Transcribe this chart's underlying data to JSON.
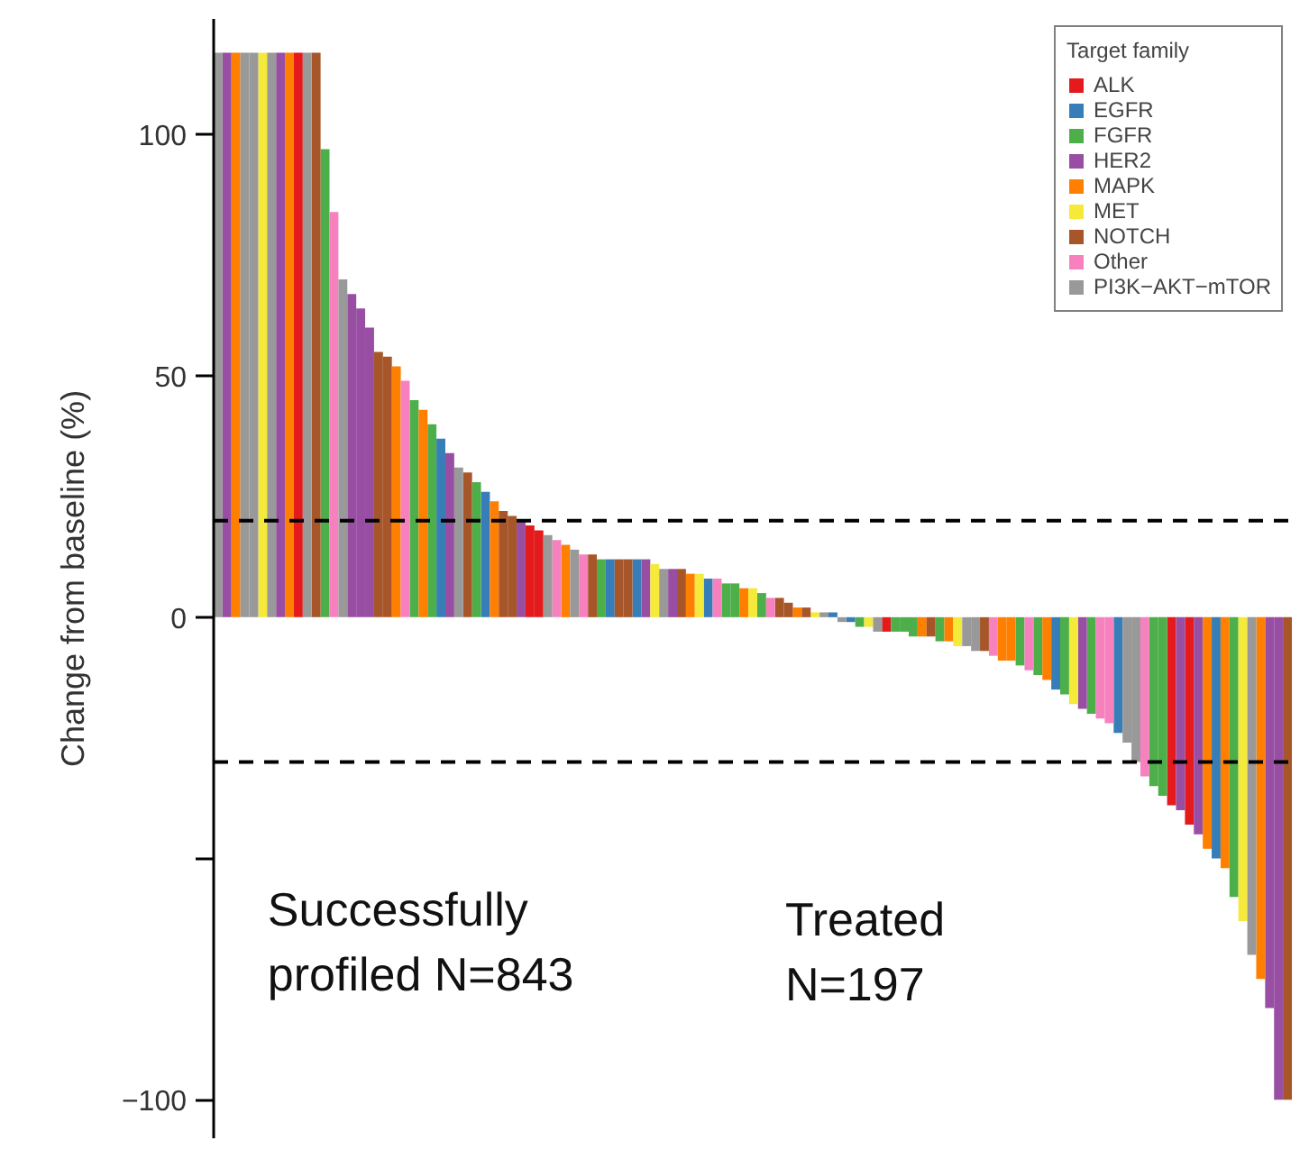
{
  "chart_data": {
    "type": "bar",
    "ylabel": "Change from baseline (%)",
    "legend_title": "Target family",
    "legend": "top right",
    "grid": false,
    "tick_labels": "y",
    "ylim": [
      -108,
      124
    ],
    "yticks": [
      -100,
      {
        "value": -50,
        "label": null
      },
      0,
      50,
      100
    ],
    "ref_lines": [
      {
        "axis": "y",
        "value": 20,
        "color": "#000000",
        "line_style": "dashed"
      },
      {
        "axis": "y",
        "value": -30,
        "color": "#000000",
        "line_style": "dashed"
      }
    ],
    "annotations": [
      "Successfully\nprofiled N=843",
      "Treated\nN=197"
    ],
    "categories": [
      null,
      null,
      null,
      null,
      null,
      null,
      null,
      null,
      null,
      null,
      null,
      null,
      null,
      null,
      null,
      null,
      null,
      null,
      null,
      null,
      null,
      null,
      null,
      null,
      null,
      null,
      null,
      null,
      null,
      null,
      null,
      null,
      null,
      null,
      null,
      null,
      null,
      null,
      null,
      null,
      null,
      null,
      null,
      null,
      null,
      null,
      null,
      null,
      null,
      null,
      null,
      null,
      null,
      null,
      null,
      null,
      null,
      null,
      null,
      null,
      null,
      null,
      null,
      null,
      null,
      null,
      null,
      null,
      null,
      null,
      null,
      null,
      null,
      null,
      null,
      null,
      null,
      null,
      null,
      null,
      null,
      null,
      null,
      null,
      null,
      null,
      null,
      null,
      null,
      null,
      null,
      null,
      null,
      null,
      null,
      null,
      null,
      null,
      null,
      null,
      null,
      null,
      null,
      null,
      null,
      null,
      null,
      null,
      null,
      null,
      null,
      null,
      null,
      null,
      null,
      null,
      null,
      null,
      null,
      null,
      null
    ],
    "series": [
      {
        "name": "ALK",
        "color": "#e41a1c",
        "values": [
          null,
          null,
          null,
          null,
          null,
          null,
          null,
          null,
          null,
          117,
          null,
          null,
          null,
          null,
          null,
          null,
          null,
          null,
          null,
          null,
          null,
          null,
          null,
          null,
          null,
          null,
          null,
          null,
          null,
          null,
          null,
          null,
          null,
          null,
          null,
          19,
          18,
          null,
          null,
          null,
          null,
          null,
          null,
          null,
          null,
          null,
          null,
          null,
          null,
          null,
          null,
          null,
          null,
          null,
          null,
          null,
          null,
          null,
          null,
          null,
          null,
          null,
          null,
          null,
          null,
          null,
          null,
          null,
          null,
          null,
          null,
          null,
          null,
          null,
          null,
          -3,
          null,
          null,
          null,
          null,
          null,
          null,
          null,
          null,
          null,
          null,
          null,
          null,
          null,
          null,
          null,
          null,
          null,
          null,
          null,
          null,
          null,
          null,
          null,
          null,
          null,
          null,
          null,
          null,
          null,
          null,
          null,
          -39,
          null,
          -43,
          null,
          null,
          null,
          null,
          null,
          null,
          null,
          null,
          null,
          null,
          null
        ]
      },
      {
        "name": "EGFR",
        "color": "#377eb8",
        "values": [
          null,
          null,
          null,
          null,
          null,
          null,
          null,
          null,
          null,
          null,
          null,
          null,
          null,
          null,
          null,
          null,
          null,
          null,
          null,
          null,
          null,
          null,
          null,
          null,
          null,
          37,
          null,
          null,
          null,
          null,
          26,
          null,
          null,
          null,
          null,
          null,
          null,
          null,
          null,
          null,
          null,
          null,
          null,
          null,
          12,
          null,
          null,
          12,
          null,
          null,
          null,
          null,
          null,
          null,
          null,
          8,
          null,
          null,
          null,
          null,
          null,
          null,
          null,
          null,
          null,
          null,
          null,
          null,
          null,
          1,
          null,
          -1,
          null,
          null,
          null,
          null,
          null,
          null,
          null,
          null,
          null,
          null,
          null,
          null,
          null,
          null,
          null,
          null,
          null,
          null,
          null,
          null,
          null,
          null,
          -15,
          null,
          null,
          null,
          null,
          null,
          null,
          -24,
          null,
          null,
          null,
          null,
          null,
          null,
          null,
          null,
          null,
          null,
          -50,
          null,
          null,
          null,
          null,
          null,
          null,
          null,
          null
        ]
      },
      {
        "name": "FGFR",
        "color": "#4daf4a",
        "values": [
          null,
          null,
          null,
          null,
          null,
          null,
          null,
          null,
          null,
          null,
          null,
          null,
          97,
          null,
          null,
          null,
          null,
          null,
          null,
          null,
          null,
          null,
          45,
          null,
          40,
          null,
          null,
          null,
          null,
          28,
          null,
          null,
          null,
          null,
          null,
          null,
          null,
          null,
          null,
          null,
          null,
          null,
          null,
          12,
          null,
          null,
          null,
          null,
          null,
          null,
          null,
          null,
          null,
          null,
          null,
          null,
          null,
          7,
          7,
          null,
          null,
          5,
          null,
          null,
          null,
          null,
          null,
          null,
          null,
          null,
          null,
          null,
          -2,
          null,
          null,
          null,
          -3,
          -3,
          -4,
          null,
          null,
          -5,
          null,
          null,
          null,
          null,
          null,
          null,
          null,
          null,
          -10,
          null,
          -12,
          null,
          null,
          -16,
          null,
          null,
          -20,
          null,
          null,
          null,
          null,
          null,
          null,
          -35,
          -37,
          null,
          null,
          null,
          null,
          null,
          null,
          null,
          -58,
          null,
          null,
          null,
          null,
          null,
          null
        ]
      },
      {
        "name": "HER2",
        "color": "#984ea3",
        "values": [
          null,
          117,
          null,
          null,
          null,
          null,
          null,
          117,
          null,
          null,
          null,
          null,
          null,
          null,
          null,
          67,
          64,
          60,
          null,
          null,
          null,
          null,
          null,
          null,
          null,
          null,
          34,
          null,
          null,
          null,
          null,
          null,
          null,
          null,
          20,
          null,
          null,
          null,
          null,
          null,
          null,
          null,
          null,
          null,
          null,
          null,
          null,
          null,
          12,
          null,
          null,
          10,
          null,
          null,
          null,
          null,
          null,
          null,
          null,
          null,
          null,
          null,
          null,
          null,
          null,
          null,
          null,
          null,
          null,
          null,
          null,
          null,
          null,
          null,
          null,
          null,
          null,
          null,
          null,
          null,
          null,
          null,
          null,
          null,
          null,
          null,
          null,
          null,
          null,
          null,
          null,
          null,
          null,
          null,
          null,
          null,
          null,
          -19,
          null,
          null,
          null,
          null,
          null,
          null,
          null,
          null,
          null,
          null,
          -40,
          null,
          -45,
          null,
          null,
          null,
          null,
          null,
          null,
          null,
          -81,
          -100,
          null
        ]
      },
      {
        "name": "MAPK",
        "color": "#ff7f00",
        "values": [
          null,
          null,
          117,
          null,
          null,
          null,
          null,
          null,
          117,
          null,
          null,
          null,
          null,
          null,
          null,
          null,
          null,
          null,
          null,
          null,
          52,
          null,
          null,
          43,
          null,
          null,
          null,
          null,
          null,
          null,
          null,
          24,
          null,
          null,
          null,
          null,
          null,
          null,
          null,
          15,
          null,
          null,
          null,
          null,
          null,
          null,
          null,
          null,
          null,
          null,
          null,
          null,
          null,
          9,
          null,
          null,
          null,
          null,
          null,
          6,
          null,
          null,
          null,
          null,
          null,
          2,
          null,
          null,
          null,
          null,
          null,
          null,
          null,
          null,
          null,
          null,
          null,
          null,
          null,
          -4,
          null,
          null,
          -5,
          null,
          null,
          null,
          null,
          null,
          -9,
          -9,
          null,
          null,
          null,
          -13,
          null,
          null,
          null,
          null,
          null,
          null,
          null,
          null,
          null,
          null,
          null,
          null,
          null,
          null,
          null,
          null,
          null,
          -48,
          null,
          -52,
          null,
          null,
          null,
          -75,
          null,
          null,
          null
        ]
      },
      {
        "name": "MET",
        "color": "#f5e93a",
        "values": [
          null,
          null,
          null,
          null,
          null,
          117,
          null,
          null,
          null,
          null,
          null,
          null,
          null,
          null,
          null,
          null,
          null,
          null,
          null,
          null,
          null,
          null,
          null,
          null,
          null,
          null,
          null,
          null,
          null,
          null,
          null,
          null,
          null,
          null,
          null,
          null,
          null,
          null,
          null,
          null,
          null,
          null,
          null,
          null,
          null,
          null,
          null,
          null,
          null,
          11,
          null,
          null,
          null,
          null,
          9,
          null,
          null,
          null,
          null,
          null,
          6,
          null,
          null,
          null,
          null,
          null,
          null,
          1,
          null,
          null,
          null,
          null,
          null,
          -2,
          null,
          null,
          null,
          null,
          null,
          null,
          null,
          null,
          null,
          -6,
          null,
          null,
          null,
          null,
          null,
          null,
          null,
          null,
          null,
          null,
          null,
          null,
          -18,
          null,
          null,
          null,
          null,
          null,
          null,
          null,
          null,
          null,
          null,
          null,
          null,
          null,
          null,
          null,
          null,
          null,
          null,
          -63,
          null,
          null,
          null,
          null,
          null
        ]
      },
      {
        "name": "NOTCH",
        "color": "#a65628",
        "values": [
          null,
          null,
          null,
          null,
          null,
          null,
          null,
          null,
          null,
          null,
          null,
          117,
          null,
          null,
          null,
          null,
          null,
          null,
          55,
          54,
          null,
          null,
          null,
          null,
          null,
          null,
          null,
          null,
          30,
          null,
          null,
          null,
          22,
          21,
          null,
          null,
          null,
          null,
          null,
          null,
          null,
          null,
          13,
          null,
          null,
          12,
          12,
          null,
          null,
          null,
          null,
          null,
          10,
          null,
          null,
          null,
          null,
          null,
          null,
          null,
          null,
          null,
          null,
          4,
          3,
          null,
          2,
          null,
          null,
          null,
          null,
          null,
          null,
          null,
          null,
          null,
          null,
          null,
          null,
          null,
          -4,
          null,
          null,
          null,
          null,
          null,
          -7,
          null,
          null,
          null,
          null,
          null,
          null,
          null,
          null,
          null,
          null,
          null,
          null,
          null,
          null,
          null,
          null,
          null,
          null,
          null,
          null,
          null,
          null,
          null,
          null,
          null,
          null,
          null,
          null,
          null,
          null,
          null,
          null,
          null,
          -100
        ]
      },
      {
        "name": "Other",
        "color": "#f781bf",
        "values": [
          null,
          null,
          null,
          null,
          null,
          null,
          null,
          null,
          null,
          null,
          null,
          null,
          null,
          84,
          null,
          null,
          null,
          null,
          null,
          null,
          null,
          49,
          null,
          null,
          null,
          null,
          null,
          null,
          null,
          null,
          null,
          null,
          null,
          null,
          null,
          null,
          null,
          null,
          16,
          null,
          null,
          13,
          null,
          null,
          null,
          null,
          null,
          null,
          null,
          null,
          null,
          null,
          null,
          null,
          null,
          null,
          8,
          null,
          null,
          null,
          null,
          null,
          4,
          null,
          null,
          null,
          null,
          null,
          null,
          null,
          null,
          null,
          null,
          null,
          null,
          null,
          null,
          null,
          null,
          null,
          null,
          null,
          null,
          null,
          null,
          null,
          null,
          -8,
          null,
          null,
          null,
          -11,
          null,
          null,
          null,
          null,
          null,
          null,
          null,
          -21,
          -22,
          null,
          null,
          null,
          -33,
          null,
          null,
          null,
          null,
          null,
          null,
          null,
          null,
          null,
          null,
          null,
          null,
          null,
          null,
          null,
          null
        ]
      },
      {
        "name": "PI3K−AKT−mTOR",
        "color": "#999999",
        "values": [
          117,
          null,
          null,
          117,
          117,
          null,
          117,
          null,
          null,
          null,
          117,
          null,
          null,
          null,
          70,
          null,
          null,
          null,
          null,
          null,
          null,
          null,
          null,
          null,
          null,
          null,
          null,
          31,
          null,
          null,
          null,
          null,
          null,
          null,
          null,
          null,
          null,
          17,
          null,
          null,
          14,
          null,
          null,
          null,
          null,
          null,
          null,
          null,
          null,
          null,
          10,
          null,
          null,
          null,
          null,
          null,
          null,
          null,
          null,
          null,
          null,
          null,
          null,
          null,
          null,
          null,
          null,
          null,
          1,
          null,
          -1,
          null,
          null,
          null,
          -3,
          null,
          null,
          null,
          null,
          null,
          null,
          null,
          null,
          null,
          -6,
          -7,
          null,
          null,
          null,
          null,
          null,
          null,
          null,
          null,
          null,
          null,
          null,
          null,
          null,
          null,
          null,
          null,
          -26,
          -30,
          null,
          null,
          null,
          null,
          null,
          null,
          null,
          null,
          null,
          null,
          null,
          null,
          -70,
          null,
          null,
          null,
          null
        ]
      }
    ]
  }
}
